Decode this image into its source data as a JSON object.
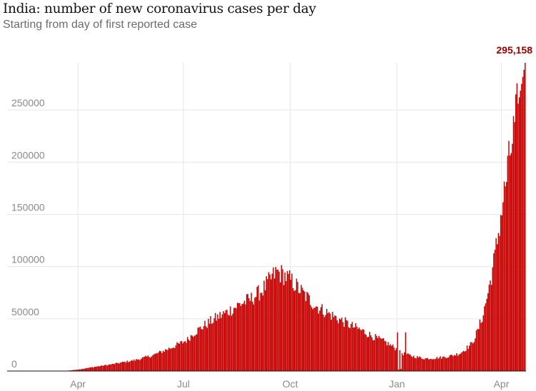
{
  "title": "India: number of new coronavirus cases per day",
  "subtitle": "Starting from day of first reported case",
  "chart_data": {
    "type": "bar",
    "title": "India: number of new coronavirus cases per day",
    "subtitle": "Starting from day of first reported case",
    "xlabel": "",
    "ylabel": "",
    "ylim": [
      0,
      295158
    ],
    "grid": true,
    "bar_color": "#c70000",
    "annotation": {
      "label": "295,158",
      "value": 295158,
      "color": "#a00000"
    },
    "y_ticks": [
      {
        "value": 0,
        "label": "0"
      },
      {
        "value": 50000,
        "label": "50000"
      },
      {
        "value": 100000,
        "label": "100000"
      },
      {
        "value": 150000,
        "label": "150000"
      },
      {
        "value": 200000,
        "label": "200000"
      },
      {
        "value": 250000,
        "label": "250000"
      }
    ],
    "x_ticks": [
      {
        "day": 61,
        "label": "Apr"
      },
      {
        "day": 152,
        "label": "Jul"
      },
      {
        "day": 244,
        "label": "Oct"
      },
      {
        "day": 336,
        "label": "Jan"
      },
      {
        "day": 426,
        "label": "Apr"
      }
    ],
    "x_range": [
      0,
      446
    ],
    "series_keypoints": {
      "day": [
        0,
        50,
        61,
        75,
        90,
        110,
        125,
        140,
        150,
        155,
        160,
        170,
        180,
        190,
        200,
        210,
        220,
        228,
        232,
        238,
        245,
        255,
        265,
        275,
        285,
        295,
        305,
        315,
        325,
        334,
        338,
        343,
        350,
        360,
        370,
        380,
        390,
        400,
        405,
        410,
        415,
        420,
        425,
        428,
        432,
        436,
        439,
        441,
        443,
        446
      ],
      "value": [
        0,
        100,
        1500,
        4000,
        6500,
        10500,
        15000,
        22000,
        27000,
        30000,
        36000,
        44000,
        51000,
        57000,
        64000,
        69000,
        78000,
        90000,
        95000,
        92000,
        86000,
        74000,
        63000,
        56000,
        50000,
        44000,
        39000,
        33000,
        28000,
        22000,
        18000,
        16000,
        14000,
        12000,
        12500,
        14000,
        17000,
        26000,
        38000,
        55000,
        80000,
        110000,
        148000,
        170000,
        200000,
        228000,
        250000,
        262000,
        275000,
        295158
      ]
    }
  }
}
